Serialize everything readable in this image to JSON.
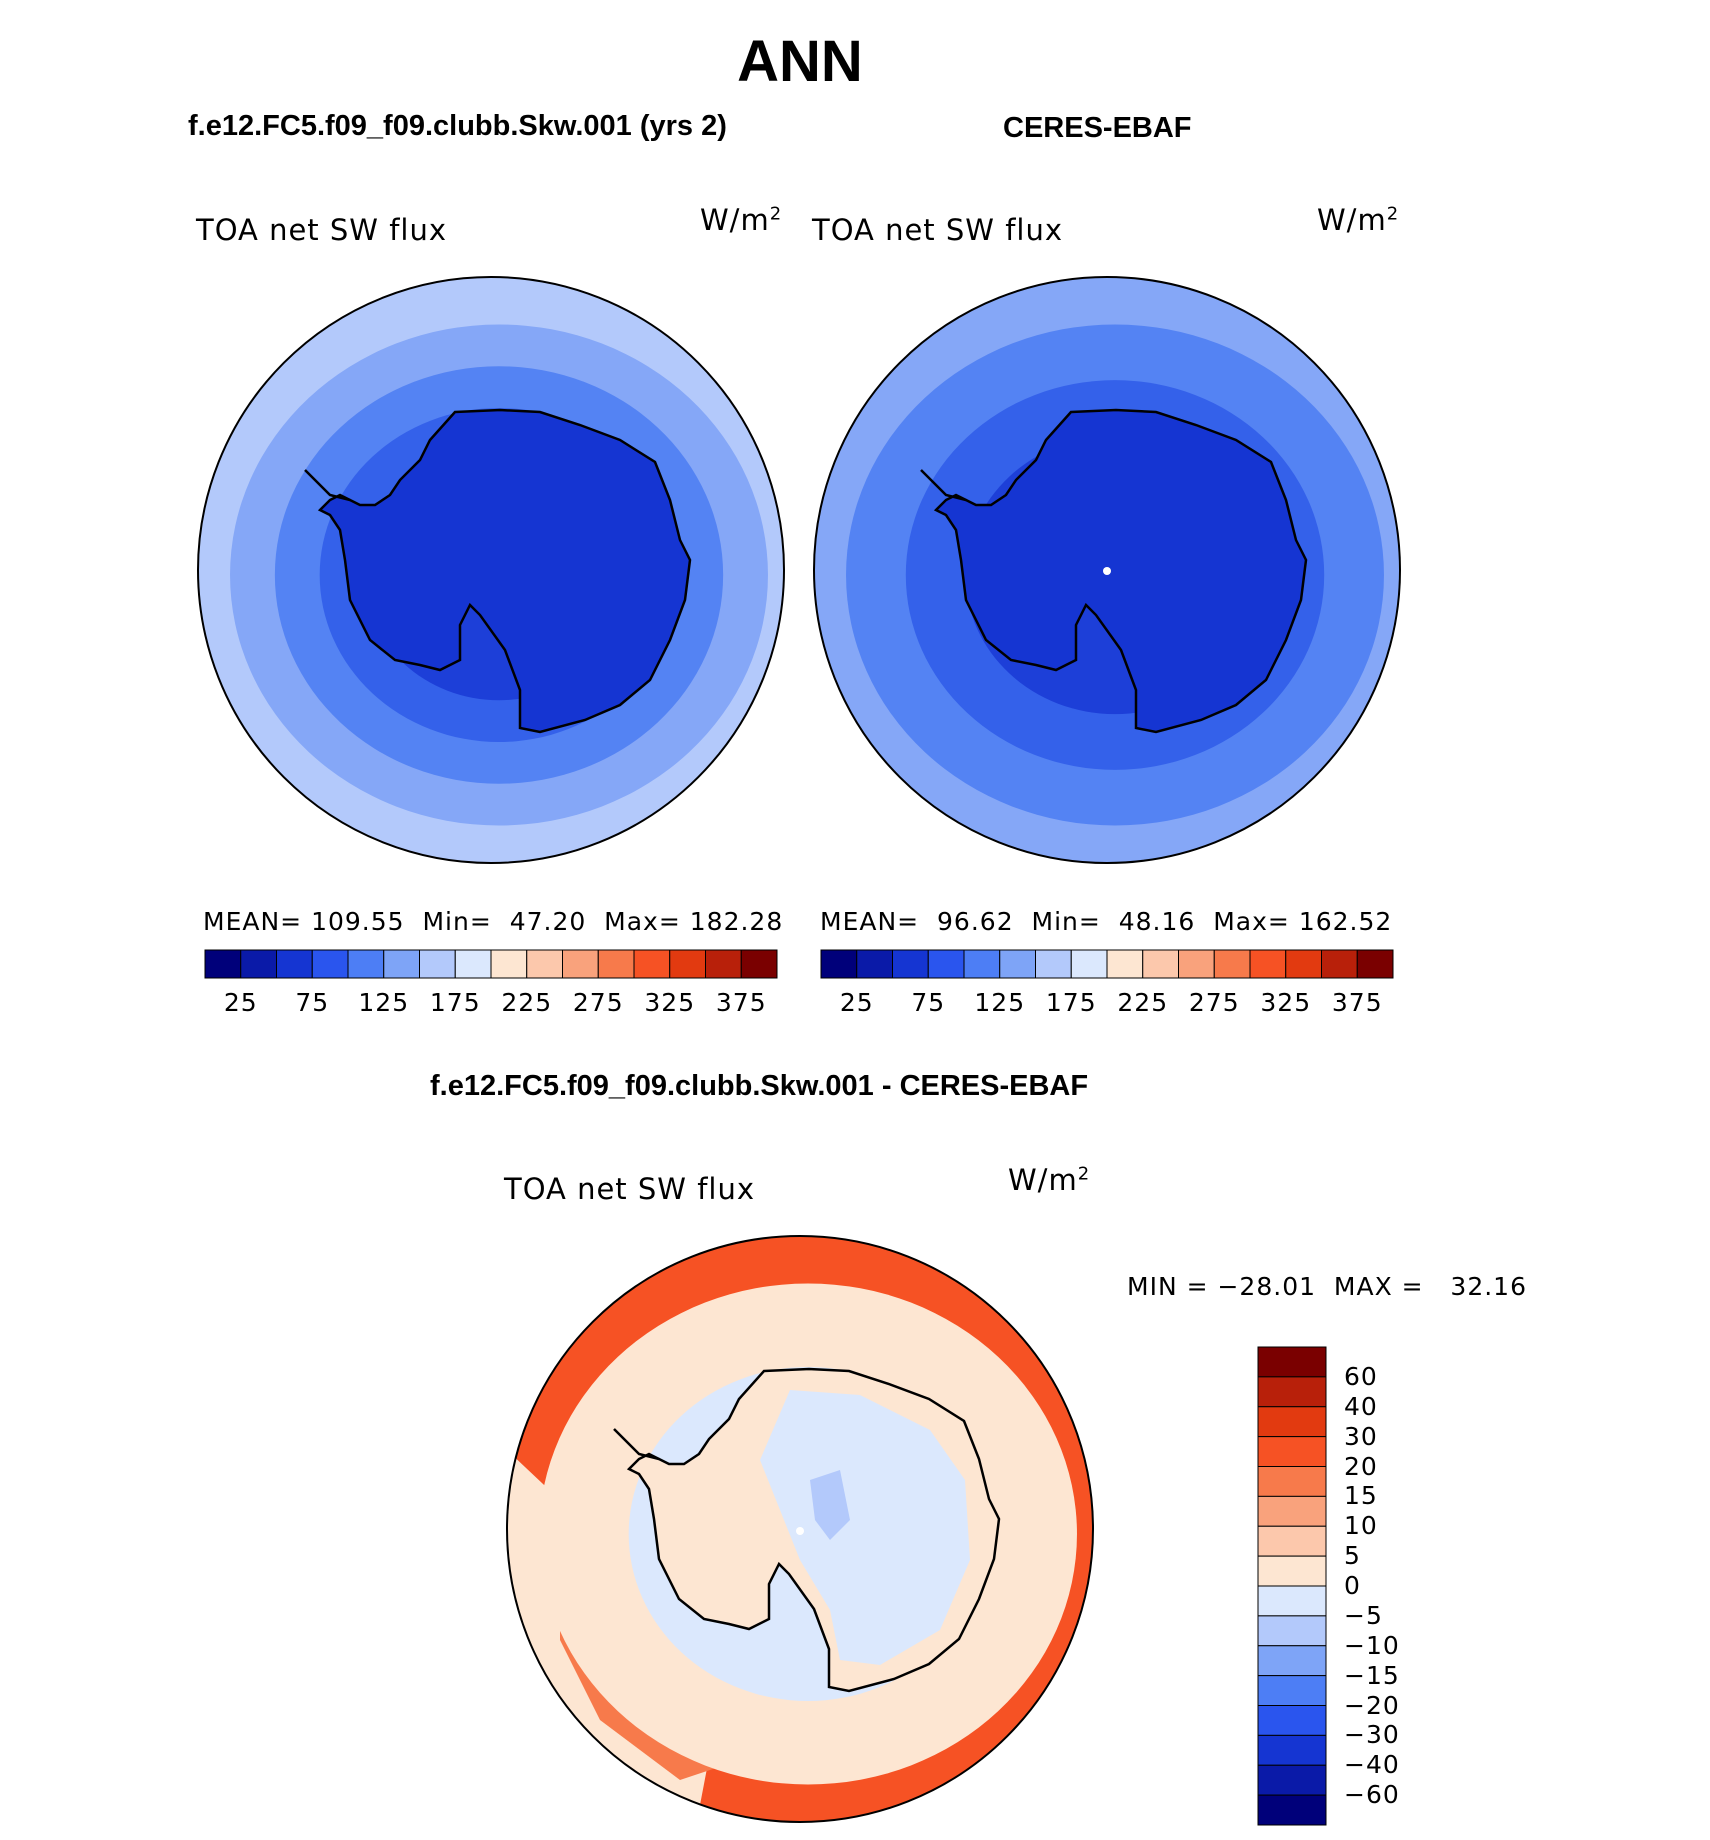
{
  "title": "ANN",
  "panels": [
    {
      "title": "f.e12.FC5.f09_f09.clubb.Skw.001 (yrs 2)",
      "variable": "TOA net SW flux",
      "units": "W/m",
      "units_sup": "2",
      "stats": {
        "mean_label": "MEAN=",
        "mean": "109.55",
        "min_label": "Min=",
        "min": "47.20",
        "max_label": "Max=",
        "max": "182.28"
      },
      "rings": [
        {
          "level": "150-175",
          "color": "#b3c9fb"
        },
        {
          "level": "125-150",
          "color": "#85a7f7"
        },
        {
          "level": "100-125",
          "color": "#5483f3"
        },
        {
          "level": "75-100",
          "color": "#3461ea"
        },
        {
          "level": "50-75",
          "color": "#1d3fd8"
        }
      ]
    },
    {
      "title": "CERES-EBAF",
      "variable": "TOA net SW flux",
      "units": "W/m",
      "units_sup": "2",
      "stats": {
        "mean_label": "MEAN=",
        "mean": "96.62",
        "min_label": "Min=",
        "min": "48.16",
        "max_label": "Max=",
        "max": "162.52"
      },
      "rings": [
        {
          "level": "125-150",
          "color": "#85a7f7"
        },
        {
          "level": "100-125",
          "color": "#5483f3"
        },
        {
          "level": "75-100",
          "color": "#3461ea"
        },
        {
          "level": "50-75",
          "color": "#1d3fd8"
        }
      ]
    }
  ],
  "colorbar_top": {
    "colors": [
      "#00007a",
      "#0a1aa8",
      "#1535d2",
      "#2a55ee",
      "#4d7ef5",
      "#7ea4f7",
      "#b3c9fb",
      "#dbe8fd",
      "#fde6d2",
      "#fcc8ac",
      "#f9a27c",
      "#f77a4b",
      "#f65224",
      "#e23a10",
      "#b8200a",
      "#7a0000"
    ],
    "tick_labels": [
      "25",
      "75",
      "125",
      "175",
      "225",
      "275",
      "325",
      "375"
    ]
  },
  "diff_panel": {
    "title": "f.e12.FC5.f09_f09.clubb.Skw.001 - CERES-EBAF",
    "variable": "TOA net SW flux",
    "units": "W/m",
    "units_sup": "2",
    "minmax": "MIN = −28.01  MAX =   32.16",
    "rings": [
      {
        "level": "20-30",
        "color": "#f65224"
      },
      {
        "level": "15-20",
        "color": "#f77a4b"
      },
      {
        "level": "5-10",
        "color": "#fde6d2"
      },
      {
        "level": "-5-0",
        "color": "#dbe8fd"
      }
    ]
  },
  "colorbar_diff": {
    "colors": [
      "#7a0000",
      "#b8200a",
      "#e23a10",
      "#f65224",
      "#f77a4b",
      "#f9a27c",
      "#fcc8ac",
      "#fde6d2",
      "#dbe8fd",
      "#b3c9fb",
      "#7ea4f7",
      "#4d7ef5",
      "#2a55ee",
      "#1535d2",
      "#0a1aa8",
      "#00007a"
    ],
    "labels": [
      "60",
      "40",
      "30",
      "20",
      "15",
      "10",
      "5",
      "0",
      "−5",
      "−10",
      "−15",
      "−20",
      "−30",
      "−40",
      "−60"
    ]
  }
}
